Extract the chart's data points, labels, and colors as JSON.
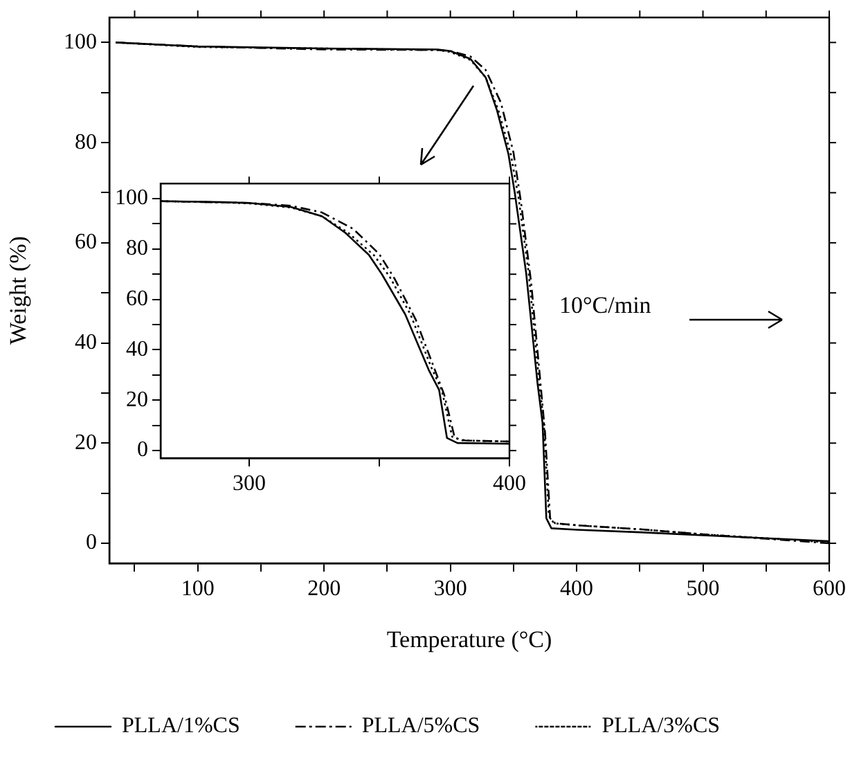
{
  "chart_data": [
    {
      "type": "line",
      "xlabel": "Temperature (°C)",
      "ylabel": "Weight (%)",
      "annotations": [
        "10°C/min"
      ],
      "xlim": [
        30,
        600
      ],
      "ylim": [
        -4,
        105
      ],
      "xticks": [
        {
          "value": 50,
          "label": null
        },
        100,
        {
          "value": 150,
          "label": null
        },
        200,
        {
          "value": 250,
          "label": null
        },
        300,
        {
          "value": 350,
          "label": null
        },
        400,
        {
          "value": 450,
          "label": null
        },
        500,
        {
          "value": 550,
          "label": null
        },
        600
      ],
      "yticks": [
        0,
        {
          "value": 10,
          "label": null
        },
        20,
        {
          "value": 30,
          "label": null
        },
        40,
        {
          "value": 50,
          "label": null
        },
        60,
        {
          "value": 70,
          "label": null
        },
        80,
        {
          "value": 90,
          "label": null
        },
        100
      ],
      "grid": false,
      "legend": "bottom",
      "marker": "none",
      "series": [
        {
          "name": "PLLA/1%CS",
          "color": "#000000",
          "line_style": "solid",
          "x": [
            35,
            100,
            200,
            290,
            300,
            316,
            328,
            337,
            346,
            351,
            360,
            369,
            373,
            376,
            380,
            400,
            450,
            500,
            550,
            600
          ],
          "values": [
            100,
            99.2,
            98.8,
            98.6,
            98.3,
            96.7,
            93,
            86.4,
            77.7,
            70,
            54,
            32,
            24,
            5,
            3,
            2.7,
            2.2,
            1.6,
            1,
            0.4
          ]
        },
        {
          "name": "PLLA/5%CS",
          "color": "#000000",
          "line_style": "dashed",
          "x": [
            35,
            100,
            200,
            290,
            300,
            316,
            328,
            340,
            350,
            356,
            364,
            371,
            375,
            379,
            383,
            400,
            450,
            500,
            550,
            600
          ],
          "values": [
            100,
            99.2,
            98.6,
            98.5,
            98.3,
            97.2,
            94.5,
            88,
            78,
            68,
            52,
            33,
            22,
            5,
            4,
            3.6,
            2.8,
            1.8,
            0.9,
            0
          ]
        },
        {
          "name": "PLLA/3%CS",
          "color": "#000000",
          "line_style": "dotted",
          "x": [
            35,
            100,
            200,
            290,
            300,
            316,
            328,
            338,
            348,
            354,
            362,
            370,
            374,
            378,
            382,
            400,
            450,
            500,
            550,
            600
          ],
          "values": [
            100,
            99.1,
            98.8,
            98.5,
            98.1,
            96.5,
            93,
            86.5,
            77.5,
            69,
            54,
            33,
            24,
            5.5,
            4,
            3.6,
            2.8,
            1.8,
            1,
            0.2
          ]
        }
      ]
    },
    {
      "type": "line",
      "xlim": [
        266,
        400
      ],
      "ylim": [
        -3,
        106
      ],
      "xticks": [
        300,
        {
          "value": 350,
          "label": null
        },
        400
      ],
      "yticks": [
        0,
        {
          "value": 10,
          "label": null
        },
        20,
        {
          "value": 30,
          "label": null
        },
        40,
        {
          "value": 50,
          "label": null
        },
        60,
        {
          "value": 70,
          "label": null
        },
        80,
        {
          "value": 90,
          "label": null
        },
        100
      ],
      "grid": false,
      "marker": "none",
      "series": [
        {
          "color": "#000000",
          "line_style": "solid",
          "x": [
            266,
            290,
            300,
            316,
            328,
            337,
            346,
            351,
            360,
            369,
            373,
            376,
            380,
            400
          ],
          "values": [
            99,
            98.6,
            98.3,
            96.7,
            93,
            86.4,
            77.7,
            70,
            54,
            32,
            24,
            5,
            3,
            2.7
          ]
        },
        {
          "color": "#000000",
          "line_style": "dashed",
          "x": [
            266,
            290,
            300,
            316,
            328,
            340,
            350,
            356,
            364,
            371,
            375,
            379,
            383,
            400
          ],
          "values": [
            99,
            98.5,
            98.3,
            97.2,
            94.5,
            88,
            78,
            68,
            52,
            33,
            22,
            5,
            4,
            3.6
          ]
        },
        {
          "color": "#000000",
          "line_style": "dotted",
          "x": [
            266,
            290,
            300,
            316,
            328,
            338,
            348,
            354,
            362,
            370,
            374,
            378,
            382,
            400
          ],
          "values": [
            99,
            98.5,
            98.1,
            96.5,
            93,
            86.5,
            77.5,
            69,
            54,
            33,
            24,
            5.5,
            4,
            3.6
          ]
        }
      ]
    }
  ]
}
